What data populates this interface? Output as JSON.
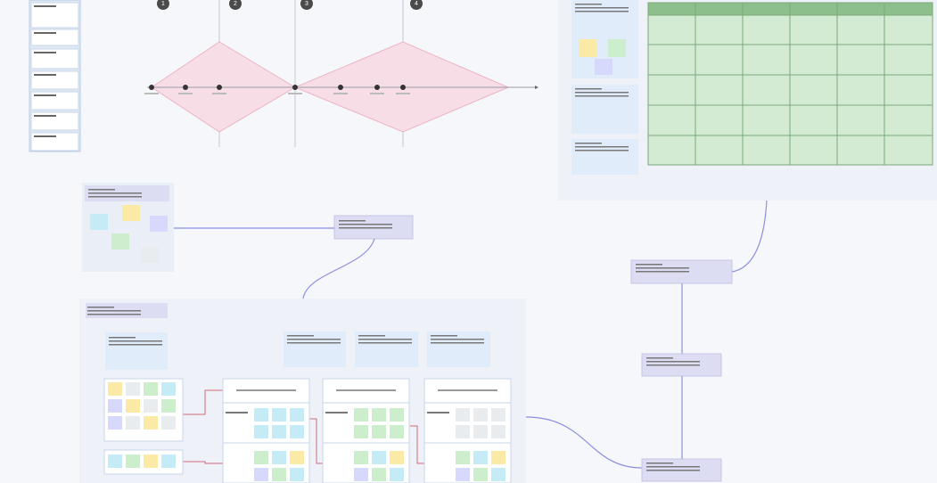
{
  "timeline": {
    "steps": [
      "1",
      "2",
      "3",
      "4"
    ]
  }
}
